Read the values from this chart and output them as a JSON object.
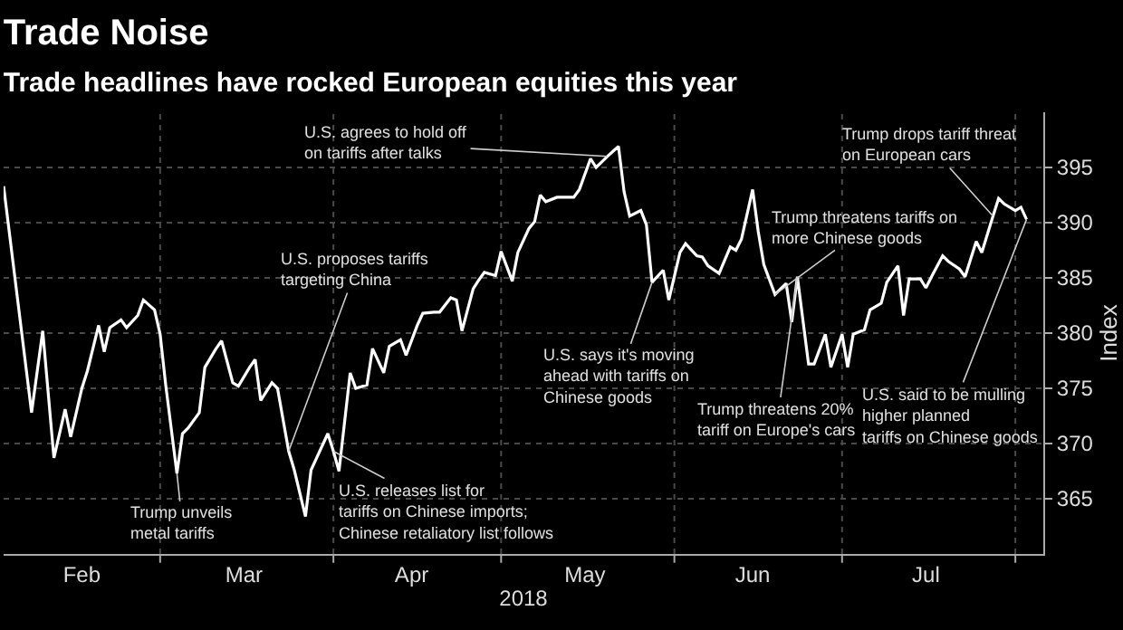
{
  "chart_data": {
    "type": "line",
    "title": "Trade Noise",
    "subtitle": "Trade headlines have rocked European equities this year",
    "xlabel": "2018",
    "ylabel": "Index",
    "x": [
      "2018-02-01",
      "2018-02-06",
      "2018-02-08",
      "2018-02-10",
      "2018-02-12",
      "2018-02-13",
      "2018-02-15",
      "2018-02-16",
      "2018-02-18",
      "2018-02-19",
      "2018-02-20",
      "2018-02-22",
      "2018-02-23",
      "2018-02-25",
      "2018-02-26",
      "2018-02-28",
      "2018-03-01",
      "2018-03-02",
      "2018-03-04",
      "2018-03-05",
      "2018-03-06",
      "2018-03-08",
      "2018-03-09",
      "2018-03-11",
      "2018-03-12",
      "2018-03-14",
      "2018-03-15",
      "2018-03-17",
      "2018-03-18",
      "2018-03-19",
      "2018-03-21",
      "2018-03-22",
      "2018-03-24",
      "2018-03-25",
      "2018-03-27",
      "2018-03-28",
      "2018-03-31",
      "2018-04-01",
      "2018-04-02",
      "2018-04-04",
      "2018-04-05",
      "2018-04-07",
      "2018-04-08",
      "2018-04-10",
      "2018-04-11",
      "2018-04-13",
      "2018-04-14",
      "2018-04-16",
      "2018-04-17",
      "2018-04-19",
      "2018-04-20",
      "2018-04-22",
      "2018-04-23",
      "2018-04-24",
      "2018-04-26",
      "2018-04-27",
      "2018-04-28",
      "2018-04-30",
      "2018-05-01",
      "2018-05-03",
      "2018-05-04",
      "2018-05-06",
      "2018-05-07",
      "2018-05-08",
      "2018-05-09",
      "2018-05-11",
      "2018-05-14",
      "2018-05-15",
      "2018-05-17",
      "2018-05-18",
      "2018-05-20",
      "2018-05-22",
      "2018-05-23",
      "2018-05-24",
      "2018-05-26",
      "2018-05-27",
      "2018-05-28",
      "2018-05-30",
      "2018-05-31",
      "2018-06-02",
      "2018-06-03",
      "2018-06-05",
      "2018-06-06",
      "2018-06-07",
      "2018-06-09",
      "2018-06-11",
      "2018-06-12",
      "2018-06-13",
      "2018-06-15",
      "2018-06-16",
      "2018-06-17",
      "2018-06-19",
      "2018-06-20",
      "2018-06-21",
      "2018-06-22",
      "2018-06-23",
      "2018-06-25",
      "2018-06-26",
      "2018-06-28",
      "2018-06-29",
      "2018-07-01",
      "2018-07-02",
      "2018-07-03",
      "2018-07-05",
      "2018-07-06",
      "2018-07-08",
      "2018-07-09",
      "2018-07-11",
      "2018-07-12",
      "2018-07-13",
      "2018-07-15",
      "2018-07-16",
      "2018-07-17",
      "2018-07-19",
      "2018-07-20",
      "2018-07-22",
      "2018-07-23",
      "2018-07-25",
      "2018-07-26",
      "2018-07-28",
      "2018-07-29",
      "2018-07-30",
      "2018-08-01",
      "2018-08-02",
      "2018-08-03"
    ],
    "series": [
      {
        "color": "#ffffff",
        "values": [
          393.3,
          372.8,
          380.2,
          368.7,
          373.1,
          370.6,
          375,
          376.6,
          380.7,
          378.3,
          380.5,
          381.2,
          380.5,
          381.6,
          383,
          382.1,
          379.9,
          375.3,
          367.3,
          370.9,
          371.4,
          372.8,
          376.9,
          378.6,
          379.3,
          375.5,
          375.2,
          376.9,
          377.6,
          373.9,
          375.5,
          375,
          369.3,
          367.6,
          363.4,
          367.6,
          370.9,
          369.3,
          367.5,
          376.4,
          375,
          375.3,
          378.6,
          376.4,
          378.8,
          379.4,
          378,
          380.7,
          381.8,
          381.9,
          381.9,
          383.2,
          383,
          380.2,
          384,
          384.8,
          385.5,
          385.2,
          387.4,
          384.7,
          387.3,
          389.5,
          390.1,
          392.5,
          391.9,
          392.3,
          392.3,
          393,
          395.8,
          395,
          396,
          396.9,
          392.8,
          390.6,
          391.1,
          389.8,
          384.6,
          385.7,
          383,
          387.3,
          388.1,
          387,
          386.9,
          386.1,
          385.4,
          387.8,
          387.5,
          388.5,
          393,
          389.2,
          386.2,
          383.5,
          384,
          384.5,
          381,
          385.1,
          377.2,
          377.2,
          379.9,
          376.9,
          379.9,
          376.9,
          379.9,
          380.3,
          382.1,
          382.7,
          384.6,
          386.1,
          381.6,
          384.9,
          384.9,
          384.1,
          385.1,
          387,
          386.5,
          385.8,
          385.1,
          388.3,
          387.3,
          390.6,
          392.2,
          391.7,
          391.1,
          391.4,
          390.3
        ]
      }
    ],
    "xlim": [
      "2018-02-01",
      "2018-08-06"
    ],
    "xticks": [
      {
        "value": "2018-02-15",
        "label": "Feb"
      },
      {
        "value": "2018-03-01",
        "label": null
      },
      {
        "value": "2018-03-16",
        "label": "Mar"
      },
      {
        "value": "2018-04-01",
        "label": null
      },
      {
        "value": "2018-04-15",
        "label": "Apr"
      },
      {
        "value": "2018-05-01",
        "label": null
      },
      {
        "value": "2018-05-16",
        "label": "May"
      },
      {
        "value": "2018-06-01",
        "label": null
      },
      {
        "value": "2018-06-15",
        "label": "Jun"
      },
      {
        "value": "2018-07-01",
        "label": null
      },
      {
        "value": "2018-07-16",
        "label": "Jul"
      },
      {
        "value": "2018-08-01",
        "label": null
      }
    ],
    "ylim": [
      360,
      400
    ],
    "yticks": [
      365,
      370,
      375,
      380,
      385,
      390,
      395
    ],
    "grid": true,
    "marker": "none",
    "line_style": "solid",
    "annotations": [
      {
        "text": "Trump unveils\nmetal tariffs",
        "x": "2018-03-04",
        "y": 367.3
      },
      {
        "text": "U.S. proposes tariffs\ntargeting China",
        "x": "2018-03-24",
        "y": 369.3
      },
      {
        "text": "U.S. releases list for\ntariffs on Chinese imports;\nChinese retaliatory list follows",
        "x": "2018-04-01",
        "y": 369.3
      },
      {
        "text": "U.S. agrees to hold off\non tariffs after talks",
        "x": "2018-05-20",
        "y": 396
      },
      {
        "text": "U.S. says it's moving\nahead with tariffs on\nChinese goods",
        "x": "2018-05-28",
        "y": 384.6
      },
      {
        "text": "Trump threatens tariffs on\nmore Chinese goods",
        "x": "2018-06-19",
        "y": 383.5
      },
      {
        "text": "Trump threatens 20%\ntariff on Europe's cars",
        "x": "2018-06-23",
        "y": 385.1
      },
      {
        "text": "Trump drops tariff threat\non European cars",
        "x": "2018-07-28",
        "y": 390.6
      },
      {
        "text": "U.S. said to be mulling\nhigher planned\ntariffs on Chinese goods",
        "x": "2018-08-03",
        "y": 390.3
      }
    ]
  }
}
